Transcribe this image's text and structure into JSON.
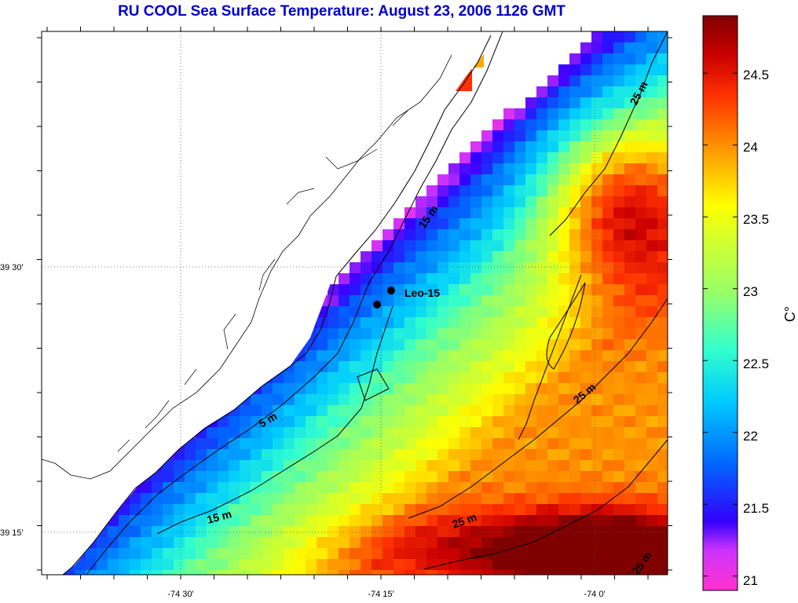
{
  "title": "RU COOL  Sea Surface Temperature:  August 23, 2006 1126 GMT",
  "map": {
    "lat_labels": [
      "39 30'",
      "39 15'"
    ],
    "lon_labels": [
      "-74 30'",
      "-74 15'",
      "-74 0'"
    ],
    "station": {
      "name": "Leo-15"
    },
    "depth_labels": [
      "25 m",
      "15 m",
      "5 m",
      "25 m",
      "15 m",
      "25 m",
      "25 m"
    ]
  },
  "colorbar": {
    "ticks": [
      "24.5",
      "24",
      "23.5",
      "23",
      "22.5",
      "22",
      "21.5",
      "21"
    ],
    "unit": "C°",
    "min": 20.9,
    "max": 24.9
  },
  "colors": {
    "title": "#0000cc",
    "land": "#ffffff",
    "contour": "#000000"
  }
}
